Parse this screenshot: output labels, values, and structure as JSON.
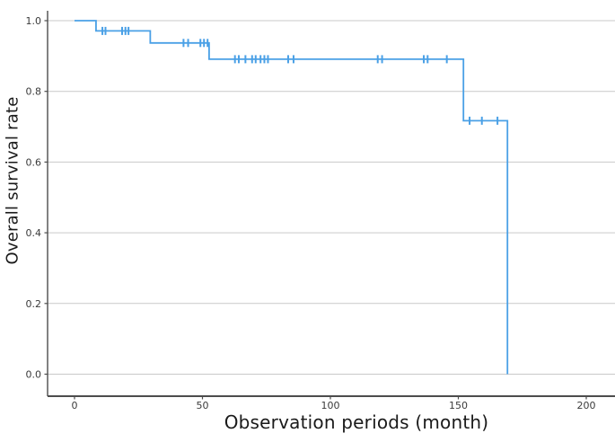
{
  "chart_data": {
    "type": "line",
    "subtype": "kaplan-meier-step",
    "title": "",
    "xlabel": "Observation periods (month)",
    "ylabel": "Overall survival rate",
    "xlim": [
      -10.5,
      211
    ],
    "ylim": [
      -0.063,
      1.05
    ],
    "grid": "horizontal-only",
    "legend": "none",
    "xticks": {
      "values": [
        0,
        50,
        100,
        150,
        200
      ],
      "labels": [
        "0",
        "50",
        "100",
        "150",
        "200"
      ]
    },
    "yticks": {
      "values": [
        1.0,
        0.8,
        0.6,
        0.4,
        0.2,
        0.0
      ],
      "labels": [
        "1.0",
        "0.8",
        "0.6",
        "0.4",
        "0.2",
        "0.0"
      ]
    },
    "series": [
      {
        "name": "Overall survival",
        "color": "#4aa0e6",
        "start": {
          "t": 0,
          "s": 1.0
        },
        "steps": [
          {
            "t": 8.4,
            "s": 0.971
          },
          {
            "t": 29.6,
            "s": 0.937
          },
          {
            "t": 52.6,
            "s": 0.891
          },
          {
            "t": 152.0,
            "s": 0.717
          },
          {
            "t": 169.2,
            "s": 0.0
          }
        ],
        "censor_marks": [
          {
            "t": 10.9,
            "s": 0.971
          },
          {
            "t": 12.1,
            "s": 0.971
          },
          {
            "t": 18.6,
            "s": 0.971
          },
          {
            "t": 19.9,
            "s": 0.971
          },
          {
            "t": 21.1,
            "s": 0.971
          },
          {
            "t": 42.6,
            "s": 0.937
          },
          {
            "t": 44.4,
            "s": 0.937
          },
          {
            "t": 49.2,
            "s": 0.937
          },
          {
            "t": 50.6,
            "s": 0.937
          },
          {
            "t": 52.0,
            "s": 0.937
          },
          {
            "t": 62.7,
            "s": 0.891
          },
          {
            "t": 64.2,
            "s": 0.891
          },
          {
            "t": 66.8,
            "s": 0.891
          },
          {
            "t": 69.4,
            "s": 0.891
          },
          {
            "t": 70.8,
            "s": 0.891
          },
          {
            "t": 72.7,
            "s": 0.891
          },
          {
            "t": 74.2,
            "s": 0.891
          },
          {
            "t": 75.6,
            "s": 0.891
          },
          {
            "t": 83.5,
            "s": 0.891
          },
          {
            "t": 85.6,
            "s": 0.891
          },
          {
            "t": 118.5,
            "s": 0.891
          },
          {
            "t": 120.2,
            "s": 0.891
          },
          {
            "t": 136.5,
            "s": 0.891
          },
          {
            "t": 138.0,
            "s": 0.891
          },
          {
            "t": 145.5,
            "s": 0.891
          },
          {
            "t": 154.4,
            "s": 0.717
          },
          {
            "t": 159.2,
            "s": 0.717
          },
          {
            "t": 165.3,
            "s": 0.717
          }
        ]
      }
    ],
    "colors": {
      "curve": "#4aa0e6",
      "grid": "#c9c9c9",
      "axis": "#4d4d4d",
      "tick_text": "#3a3a3a",
      "title_text": "#1a1a1a",
      "background": "#ffffff"
    }
  }
}
